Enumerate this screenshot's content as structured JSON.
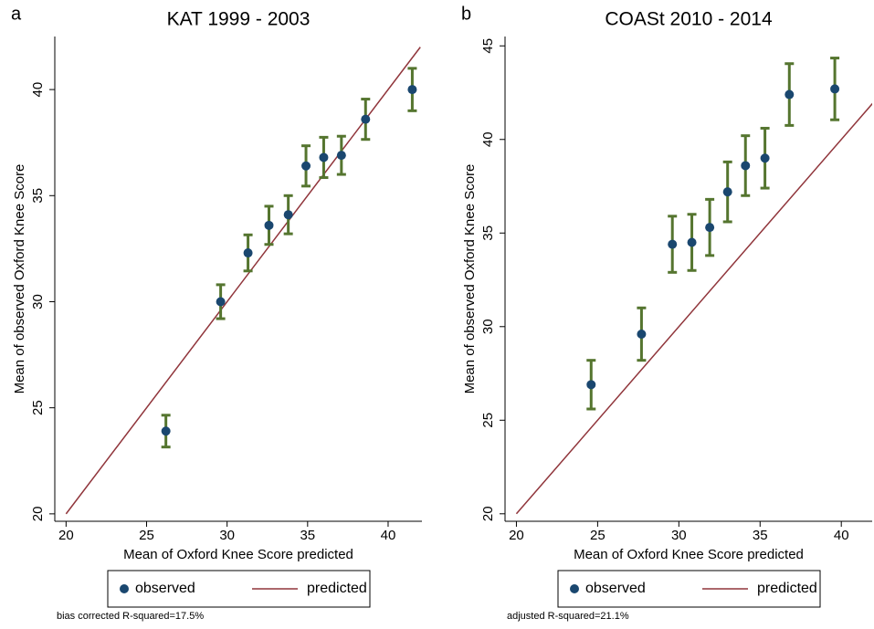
{
  "chart_data": [
    {
      "type": "scatter",
      "label": "a",
      "title": "KAT 1999 - 2003",
      "xlabel": "Mean of Oxford Knee Score predicted",
      "ylabel": "Mean of observed Oxford Knee Score",
      "note": "bias corrected R-squared=17.5%",
      "xlim": [
        19.3,
        42.1
      ],
      "ylim": [
        19.65,
        42.5
      ],
      "xticks": [
        20,
        25,
        30,
        35,
        40
      ],
      "yticks": [
        20,
        25,
        30,
        35,
        40
      ],
      "legend": "bottom",
      "series": [
        {
          "name": "observed",
          "color": "#1a476f",
          "error_color": "#55752f",
          "x": [
            26.2,
            29.6,
            31.3,
            32.6,
            33.8,
            34.9,
            36.0,
            37.1,
            38.6,
            41.5
          ],
          "values": [
            23.9,
            30.0,
            32.3,
            33.6,
            34.1,
            36.4,
            36.8,
            36.9,
            38.6,
            40.0
          ],
          "errors": [
            0.75,
            0.8,
            0.85,
            0.9,
            0.9,
            0.95,
            0.95,
            0.9,
            0.95,
            1.0
          ]
        },
        {
          "name": "predicted",
          "type": "line",
          "color": "#90353b",
          "x": [
            20,
            42
          ],
          "values": [
            20,
            42
          ]
        }
      ]
    },
    {
      "type": "scatter",
      "label": "b",
      "title": "COASt 2010 - 2014",
      "xlabel": "Mean of Oxford Knee Score predicted",
      "ylabel": "Mean of observed Oxford Knee Score",
      "note": "adjusted R-squared=21.1%",
      "xlim": [
        19.3,
        41.9
      ],
      "ylim": [
        19.6,
        45.5
      ],
      "xticks": [
        20,
        25,
        30,
        35,
        40
      ],
      "yticks": [
        20,
        25,
        30,
        35,
        40,
        45
      ],
      "legend": "bottom",
      "series": [
        {
          "name": "observed",
          "color": "#1a476f",
          "error_color": "#55752f",
          "x": [
            24.6,
            27.7,
            29.6,
            30.8,
            31.9,
            33.0,
            34.1,
            35.3,
            36.8,
            39.6
          ],
          "values": [
            26.9,
            29.6,
            34.4,
            34.5,
            35.3,
            37.2,
            38.6,
            39.0,
            42.4,
            42.7
          ],
          "errors": [
            1.3,
            1.4,
            1.5,
            1.5,
            1.5,
            1.6,
            1.6,
            1.6,
            1.65,
            1.65
          ]
        },
        {
          "name": "predicted",
          "type": "line",
          "color": "#90353b",
          "x": [
            20,
            42
          ],
          "values": [
            20,
            42
          ]
        }
      ]
    }
  ]
}
